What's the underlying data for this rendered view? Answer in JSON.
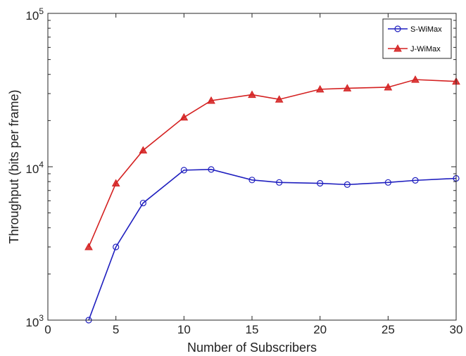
{
  "chart_data": {
    "type": "line",
    "xlabel": "Number of Subscribers",
    "ylabel": "Throughput (bits per frame)",
    "xlim": [
      0,
      30
    ],
    "ylim": [
      1000,
      100000
    ],
    "yscale": "log",
    "xticks": [
      0,
      5,
      10,
      15,
      20,
      25,
      30
    ],
    "yticks": [
      {
        "value": 1000,
        "base": "10",
        "exp": "3"
      },
      {
        "value": 10000,
        "base": "10",
        "exp": "4"
      },
      {
        "value": 100000,
        "base": "10",
        "exp": "5"
      }
    ],
    "grid": false,
    "legend_position": "top-right",
    "series": [
      {
        "name": "S-WiMax",
        "color": "#1f1fbf",
        "marker": "circle",
        "x": [
          3,
          5,
          7,
          10,
          12,
          15,
          17,
          20,
          22,
          25,
          27,
          30
        ],
        "y": [
          1000,
          3000,
          5800,
          9500,
          9600,
          8200,
          7900,
          7800,
          7650,
          7900,
          8150,
          8400
        ]
      },
      {
        "name": "J-WiMax",
        "color": "#d42020",
        "marker": "triangle",
        "x": [
          3,
          5,
          7,
          10,
          12,
          15,
          17,
          20,
          22,
          25,
          27,
          30
        ],
        "y": [
          3000,
          7800,
          12800,
          21000,
          27000,
          29500,
          27500,
          32000,
          32500,
          33000,
          37000,
          36000
        ]
      }
    ]
  }
}
